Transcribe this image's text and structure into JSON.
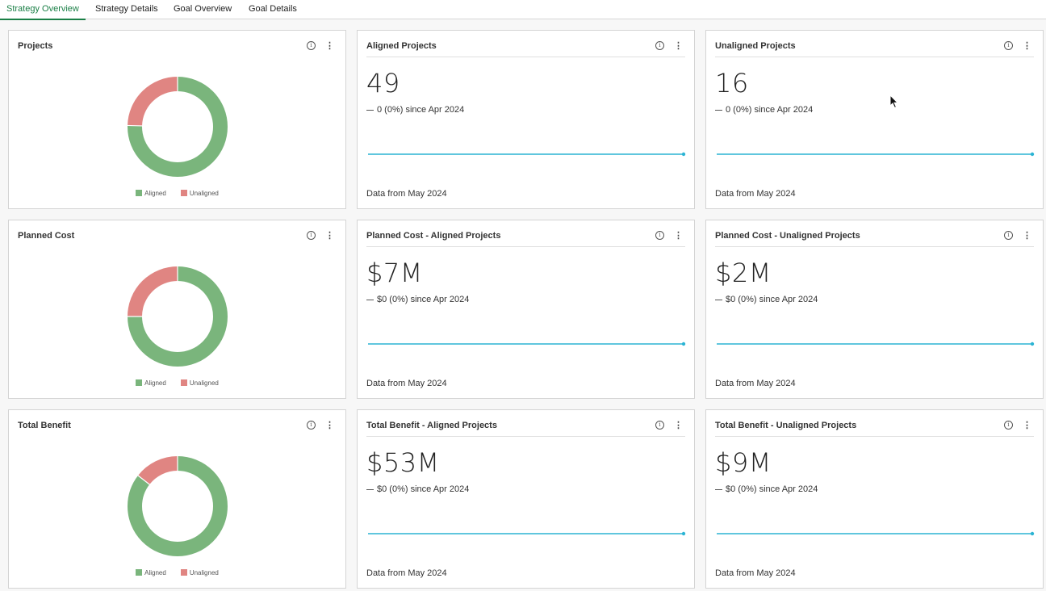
{
  "tabs": [
    {
      "label": "Strategy Overview",
      "active": true
    },
    {
      "label": "Strategy Details",
      "active": false
    },
    {
      "label": "Goal Overview",
      "active": false
    },
    {
      "label": "Goal Details",
      "active": false
    }
  ],
  "colors": {
    "aligned": "#7ab57c",
    "unaligned": "#e08582",
    "spark": "#2cb4d4",
    "active_tab": "#1a7f46"
  },
  "icons": {
    "info": "info-circle-icon",
    "menu": "kebab-menu-icon"
  },
  "rows": [
    {
      "donut": {
        "title": "Projects",
        "aligned_fraction": 0.754,
        "legend": [
          "Aligned",
          "Unaligned"
        ]
      },
      "kpis": [
        {
          "title": "Aligned Projects",
          "value": "49",
          "delta": "0 (0%) since Apr 2024",
          "footer": "Data from May 2024"
        },
        {
          "title": "Unaligned Projects",
          "value": "16",
          "delta": "0 (0%) since Apr 2024",
          "footer": "Data from May 2024"
        }
      ]
    },
    {
      "donut": {
        "title": "Planned Cost",
        "aligned_fraction": 0.75,
        "legend": [
          "Aligned",
          "Unaligned"
        ]
      },
      "kpis": [
        {
          "title": "Planned Cost - Aligned Projects",
          "value": "$7M",
          "delta": "$0 (0%) since Apr 2024",
          "footer": "Data from May 2024"
        },
        {
          "title": "Planned Cost - Unaligned Projects",
          "value": "$2M",
          "delta": "$0 (0%) since Apr 2024",
          "footer": "Data from May 2024"
        }
      ]
    },
    {
      "donut": {
        "title": "Total Benefit",
        "aligned_fraction": 0.855,
        "legend": [
          "Aligned",
          "Unaligned"
        ]
      },
      "kpis": [
        {
          "title": "Total Benefit - Aligned Projects",
          "value": "$53M",
          "delta": "$0 (0%) since Apr 2024",
          "footer": "Data from May 2024"
        },
        {
          "title": "Total Benefit - Unaligned Projects",
          "value": "$9M",
          "delta": "$0 (0%) since Apr 2024",
          "footer": "Data from May 2024"
        }
      ]
    }
  ]
}
